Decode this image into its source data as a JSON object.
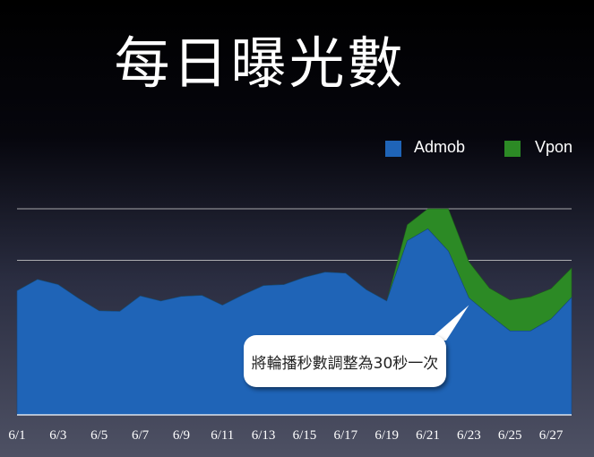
{
  "title": "每日曝光數",
  "colors": {
    "admob": "#1f64b7",
    "vpon": "#2c8a25",
    "gridline": "#d8d8d8",
    "tick_label": "#ffffff"
  },
  "legend": [
    {
      "name": "Admob",
      "color": "#1f64b7"
    },
    {
      "name": "Vpon",
      "color": "#2c8a25"
    }
  ],
  "annotation": {
    "text": "將輪播秒數調整為30秒一次"
  },
  "chart_data": {
    "type": "area",
    "stacked": true,
    "x": [
      "6/1",
      "6/2",
      "6/3",
      "6/4",
      "6/5",
      "6/6",
      "6/7",
      "6/8",
      "6/9",
      "6/10",
      "6/11",
      "6/12",
      "6/13",
      "6/14",
      "6/15",
      "6/16",
      "6/17",
      "6/18",
      "6/19",
      "6/20",
      "6/21",
      "6/22",
      "6/23",
      "6/24",
      "6/25",
      "6/26",
      "6/27",
      "6/28"
    ],
    "x_tick_labels": [
      "6/1",
      "6/3",
      "6/5",
      "6/7",
      "6/9",
      "6/11",
      "6/13",
      "6/15",
      "6/17",
      "6/19",
      "6/21",
      "6/23",
      "6/25",
      "6/27"
    ],
    "series": [
      {
        "name": "Admob",
        "values": [
          2.41,
          2.63,
          2.53,
          2.26,
          2.02,
          2.01,
          2.31,
          2.21,
          2.3,
          2.32,
          2.13,
          2.33,
          2.51,
          2.53,
          2.67,
          2.77,
          2.75,
          2.43,
          2.21,
          3.38,
          3.61,
          3.18,
          2.27,
          1.94,
          1.63,
          1.63,
          1.86,
          2.28
        ]
      },
      {
        "name": "Vpon",
        "values": [
          0,
          0,
          0,
          0,
          0,
          0,
          0,
          0,
          0,
          0,
          0,
          0,
          0,
          0,
          0,
          0,
          0,
          0,
          0,
          0.31,
          0.39,
          0.82,
          0.7,
          0.52,
          0.6,
          0.66,
          0.59,
          0.57
        ]
      }
    ],
    "ylim": [
      0,
      4
    ],
    "grid": true,
    "legend_position": "top-right"
  }
}
